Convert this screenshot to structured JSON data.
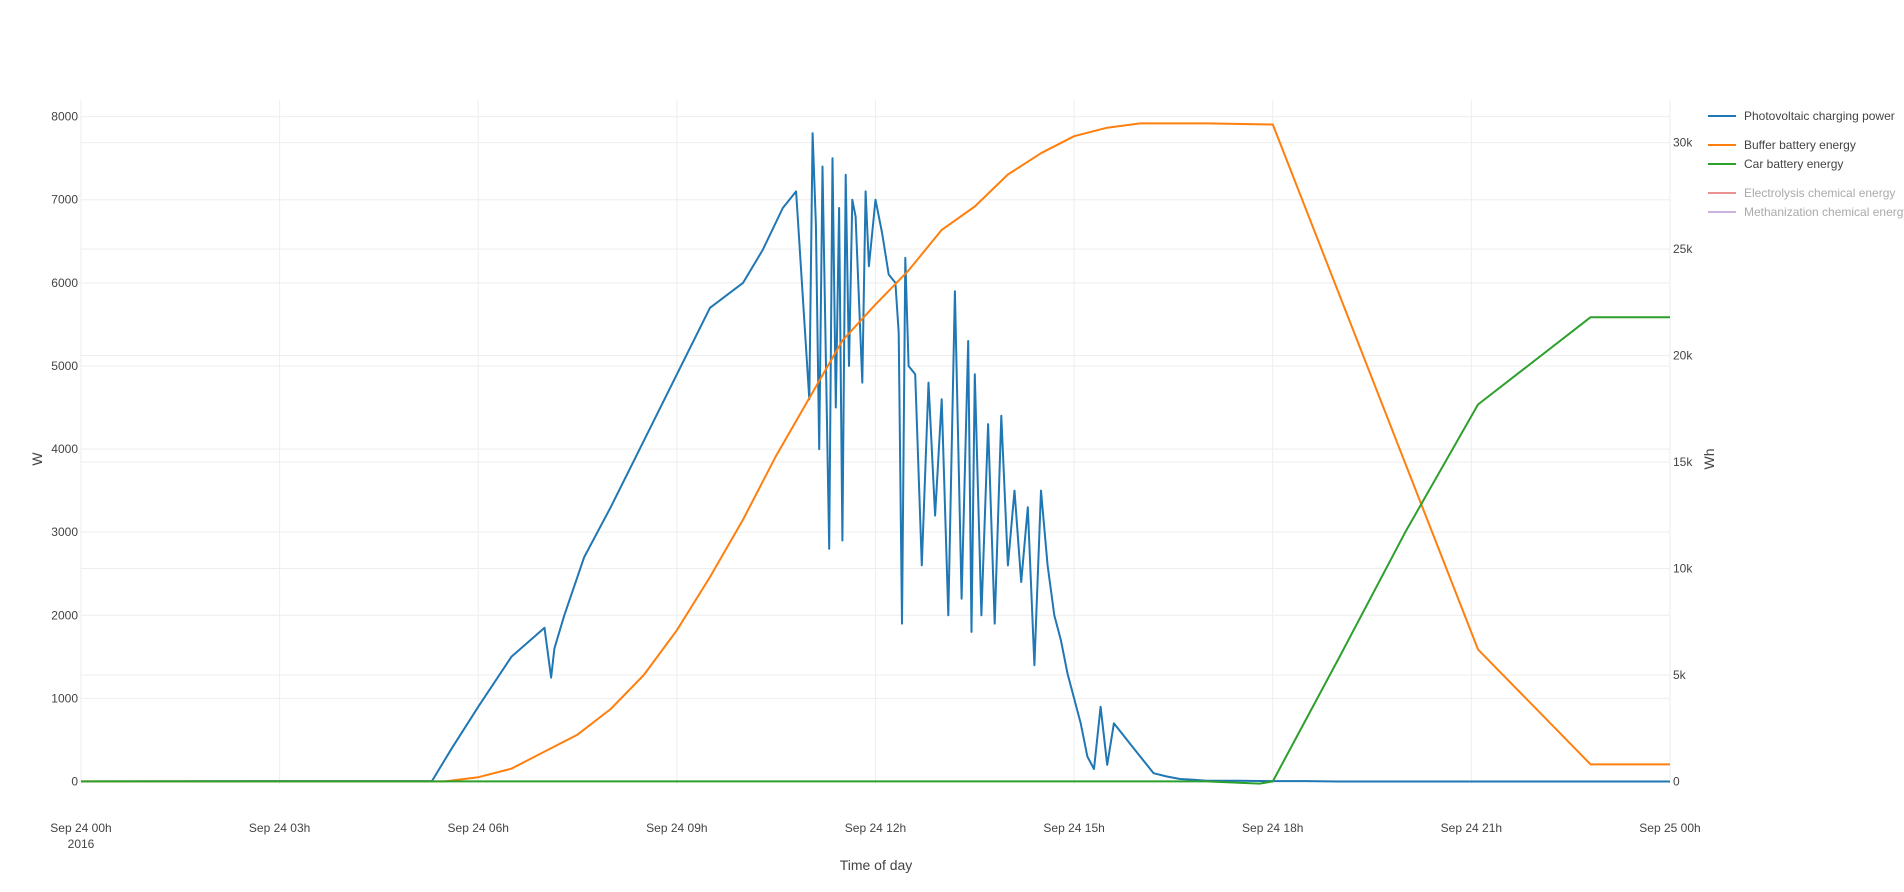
{
  "chart_data": {
    "type": "line",
    "xlabel": "Time of day",
    "ylabel": "W",
    "y2label": "Wh",
    "x_tick_labels": [
      "Sep 24 00h",
      "Sep 24 03h",
      "Sep 24 06h",
      "Sep 24 09h",
      "Sep 24 12h",
      "Sep 24 15h",
      "Sep 24 18h",
      "Sep 24 21h",
      "Sep 25 00h"
    ],
    "x_tick_sublabel": "2016",
    "x_tick_hours": [
      0,
      3,
      6,
      9,
      12,
      15,
      18,
      21,
      24
    ],
    "xlim_hours": [
      0,
      24
    ],
    "ylim": [
      -30,
      8200
    ],
    "y_ticks": [
      0,
      1000,
      2000,
      3000,
      4000,
      5000,
      6000,
      7000,
      8000
    ],
    "y_tick_labels": [
      "0",
      "1000",
      "2000",
      "3000",
      "4000",
      "5000",
      "6000",
      "7000",
      "8000"
    ],
    "y2lim": [
      -120,
      32000
    ],
    "y2_ticks": [
      0,
      5000,
      10000,
      15000,
      20000,
      25000,
      30000
    ],
    "y2_tick_labels": [
      "0",
      "5k",
      "10k",
      "15k",
      "20k",
      "25k",
      "30k"
    ],
    "grid": true,
    "legend_position": "right",
    "series": [
      {
        "name": "Photovoltaic charging power",
        "axis": "y",
        "color": "#1f77b4",
        "visible": true,
        "x_hours": [
          0,
          3,
          5.3,
          5.6,
          6,
          6.5,
          7.0,
          7.1,
          7.15,
          7.3,
          7.6,
          8.0,
          8.5,
          9.0,
          9.5,
          10.0,
          10.3,
          10.6,
          10.8,
          11.0,
          11.05,
          11.1,
          11.15,
          11.2,
          11.3,
          11.35,
          11.4,
          11.45,
          11.5,
          11.55,
          11.6,
          11.65,
          11.7,
          11.8,
          11.85,
          11.9,
          12.0,
          12.1,
          12.2,
          12.3,
          12.35,
          12.4,
          12.45,
          12.5,
          12.6,
          12.7,
          12.8,
          12.9,
          13.0,
          13.1,
          13.2,
          13.3,
          13.4,
          13.45,
          13.5,
          13.6,
          13.7,
          13.8,
          13.9,
          14.0,
          14.1,
          14.2,
          14.3,
          14.4,
          14.5,
          14.6,
          14.7,
          14.8,
          14.9,
          15.0,
          15.1,
          15.2,
          15.3,
          15.4,
          15.5,
          15.6,
          15.8,
          16.0,
          16.2,
          16.4,
          16.6,
          16.8,
          17.0,
          17.2,
          17.5,
          18.0,
          18.5,
          19.0,
          24
        ],
        "values": [
          0,
          5,
          5,
          400,
          900,
          1500,
          1850,
          1250,
          1600,
          2000,
          2700,
          3300,
          4100,
          4900,
          5700,
          6000,
          6400,
          6900,
          7100,
          4600,
          7800,
          6700,
          4000,
          7400,
          2800,
          7500,
          4500,
          6900,
          2900,
          7300,
          5000,
          7000,
          6800,
          4800,
          7100,
          6200,
          7000,
          6600,
          6100,
          6000,
          5400,
          1900,
          6300,
          5000,
          4900,
          2600,
          4800,
          3200,
          4600,
          2000,
          5900,
          2200,
          5300,
          1800,
          4900,
          2000,
          4300,
          1900,
          4400,
          2600,
          3500,
          2400,
          3300,
          1400,
          3500,
          2600,
          2000,
          1700,
          1300,
          1000,
          700,
          300,
          150,
          900,
          200,
          700,
          500,
          300,
          100,
          60,
          30,
          20,
          10,
          10,
          10,
          5,
          5,
          0,
          0
        ]
      },
      {
        "name": "Buffer battery energy",
        "axis": "y2",
        "color": "#ff7f0e",
        "visible": true,
        "x_hours": [
          0,
          5.5,
          6,
          6.5,
          7,
          7.5,
          8,
          8.5,
          9,
          9.5,
          10,
          10.5,
          11,
          11.5,
          12,
          12.5,
          13,
          13.5,
          14,
          14.5,
          15,
          15.5,
          16,
          17,
          18,
          21.1,
          22.8,
          24
        ],
        "values": [
          0,
          0,
          200,
          600,
          1400,
          2200,
          3400,
          5000,
          7100,
          9600,
          12300,
          15300,
          18000,
          20700,
          22400,
          24000,
          25900,
          27000,
          28500,
          29500,
          30300,
          30700,
          30900,
          30900,
          30850,
          6200,
          800,
          800
        ]
      },
      {
        "name": "Car battery energy",
        "axis": "y2",
        "color": "#2ca02c",
        "visible": true,
        "x_hours": [
          0,
          17.0,
          17.8,
          18.0,
          19,
          20,
          21.1,
          22.8,
          24
        ],
        "values": [
          0,
          0,
          -100,
          0,
          5800,
          11700,
          17700,
          21800,
          21800
        ]
      },
      {
        "name": "Electrolysis chemical energy",
        "axis": "y2",
        "color": "#d62728",
        "visible": false,
        "x_hours": [],
        "values": []
      },
      {
        "name": "Methanization chemical energy",
        "axis": "y2",
        "color": "#9467bd",
        "visible": false,
        "x_hours": [],
        "values": []
      }
    ]
  }
}
